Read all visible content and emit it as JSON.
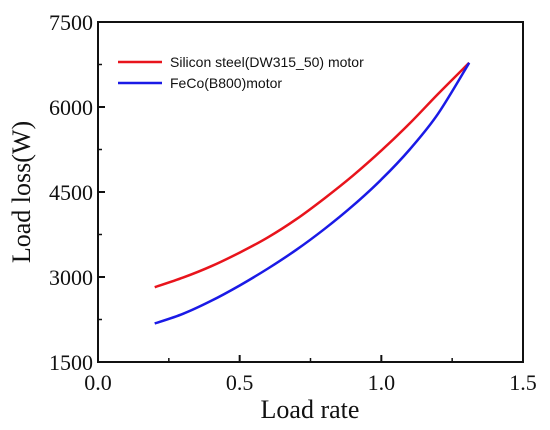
{
  "chart_data": {
    "type": "line",
    "xlabel": "Load rate",
    "ylabel": "Load loss(W)",
    "xlim": [
      0.0,
      1.5
    ],
    "ylim": [
      1500,
      7500
    ],
    "xticks": [
      "0.0",
      "0.5",
      "1.0",
      "1.5"
    ],
    "yticks": [
      "1500",
      "3000",
      "4500",
      "6000",
      "7500"
    ],
    "grid": false,
    "legend": "top-left",
    "series": [
      {
        "name": "Silicon steel(DW315_50) motor",
        "color": "#e8141c",
        "x": [
          0.2,
          0.3,
          0.4,
          0.5,
          0.6,
          0.7,
          0.8,
          0.9,
          1.0,
          1.1,
          1.2,
          1.31
        ],
        "y": [
          2820,
          2990,
          3190,
          3430,
          3700,
          4020,
          4390,
          4790,
          5230,
          5710,
          6230,
          6780
        ]
      },
      {
        "name": "FeCo(B800)motor",
        "color": "#1a1ae6",
        "x": [
          0.2,
          0.3,
          0.4,
          0.5,
          0.6,
          0.7,
          0.8,
          0.9,
          1.0,
          1.1,
          1.2,
          1.31
        ],
        "y": [
          2180,
          2350,
          2580,
          2850,
          3150,
          3480,
          3850,
          4260,
          4720,
          5250,
          5880,
          6780
        ]
      }
    ]
  }
}
